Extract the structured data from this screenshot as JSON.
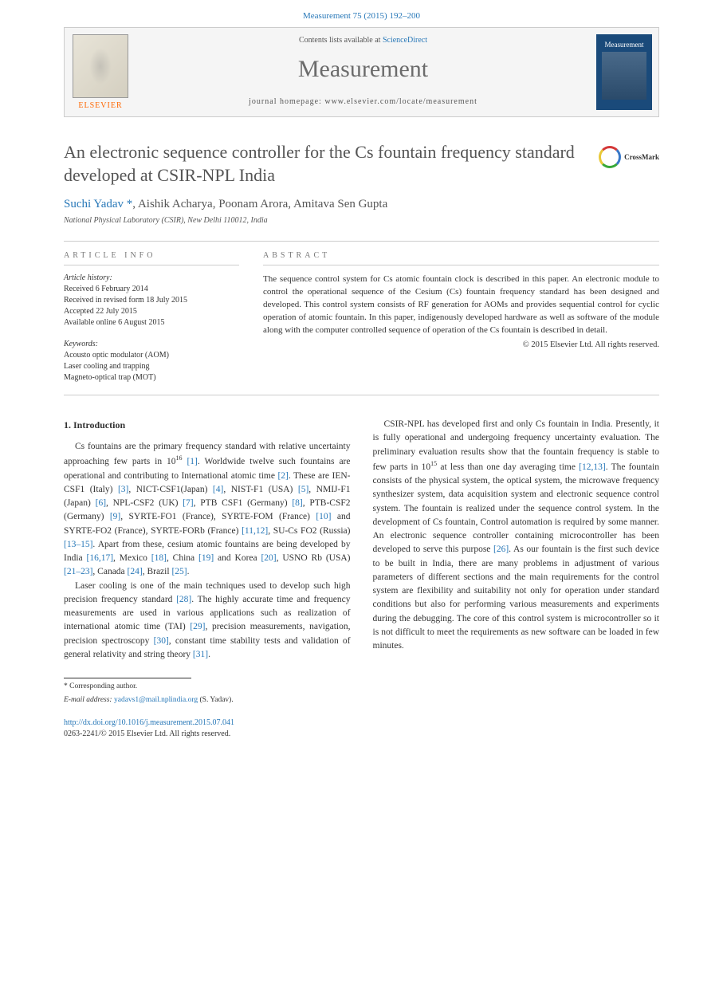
{
  "citation": {
    "journal_link_text": "Measurement 75 (2015) 192–200",
    "journal_link_color": "#2878b8"
  },
  "header": {
    "contents_prefix": "Contents lists available at ",
    "contents_link": "ScienceDirect",
    "journal_name": "Measurement",
    "homepage_prefix": "journal homepage: ",
    "homepage_url": "www.elsevier.com/locate/measurement",
    "publisher": "ELSEVIER",
    "cover_label": "Measurement"
  },
  "crossmark": {
    "label": "CrossMark"
  },
  "article": {
    "title": "An electronic sequence controller for the Cs fountain frequency standard developed at CSIR-NPL India",
    "authors_html_parts": {
      "a1": "Suchi Yadav",
      "corr_mark": "*",
      "sep": ", ",
      "a2": "Aishik Acharya",
      "a3": "Poonam Arora",
      "a4": "Amitava Sen Gupta"
    },
    "affiliation": "National Physical Laboratory (CSIR), New Delhi 110012, India"
  },
  "info": {
    "label": "ARTICLE INFO",
    "history_label": "Article history:",
    "history": [
      "Received 6 February 2014",
      "Received in revised form 18 July 2015",
      "Accepted 22 July 2015",
      "Available online 6 August 2015"
    ],
    "keywords_label": "Keywords:",
    "keywords": [
      "Acousto optic modulator (AOM)",
      "Laser cooling and trapping",
      "Magneto-optical trap (MOT)"
    ]
  },
  "abstract": {
    "label": "ABSTRACT",
    "text": "The sequence control system for Cs atomic fountain clock is described in this paper. An electronic module to control the operational sequence of the Cesium (Cs) fountain frequency standard has been designed and developed. This control system consists of RF generation for AOMs and provides sequential control for cyclic operation of atomic fountain. In this paper, indigenously developed hardware as well as software of the module along with the computer controlled sequence of operation of the Cs fountain is described in detail.",
    "copyright": "© 2015 Elsevier Ltd. All rights reserved."
  },
  "body": {
    "h1": "1. Introduction",
    "refs": {
      "r1": "[1]",
      "r2": "[2]",
      "r3": "[3]",
      "r4": "[4]",
      "r5": "[5]",
      "r6": "[6]",
      "r7": "[7]",
      "r8": "[8]",
      "r9": "[9]",
      "r10": "[10]",
      "r11_12": "[11,12]",
      "r13_15": "[13–15]",
      "r16_17": "[16,17]",
      "r18": "[18]",
      "r19": "[19]",
      "r20": "[20]",
      "r21_23": "[21–23]",
      "r24": "[24]",
      "r25": "[25]",
      "r26": "[26]",
      "r28": "[28]",
      "r29": "[29]",
      "r30": "[30]",
      "r31": "[31]",
      "r12_13": "[12,13]"
    },
    "exp16": "16",
    "exp15": "15"
  },
  "footnote": {
    "corr": "* Corresponding author.",
    "email_label": "E-mail address: ",
    "email": "yadavs1@mail.nplindia.org",
    "email_suffix": " (S. Yadav)."
  },
  "doi": {
    "url": "http://dx.doi.org/10.1016/j.measurement.2015.07.041",
    "issn_line": "0263-2241/© 2015 Elsevier Ltd. All rights reserved."
  },
  "colors": {
    "link": "#2878b8",
    "text": "#333333",
    "muted": "#666666",
    "orange": "#ff6600",
    "rule": "#cccccc",
    "cover_bg": "#1a4a7a"
  },
  "typography": {
    "body_pt": 11.5,
    "title_pt": 22,
    "journal_pt": 30,
    "author_pt": 15,
    "small_pt": 10
  }
}
